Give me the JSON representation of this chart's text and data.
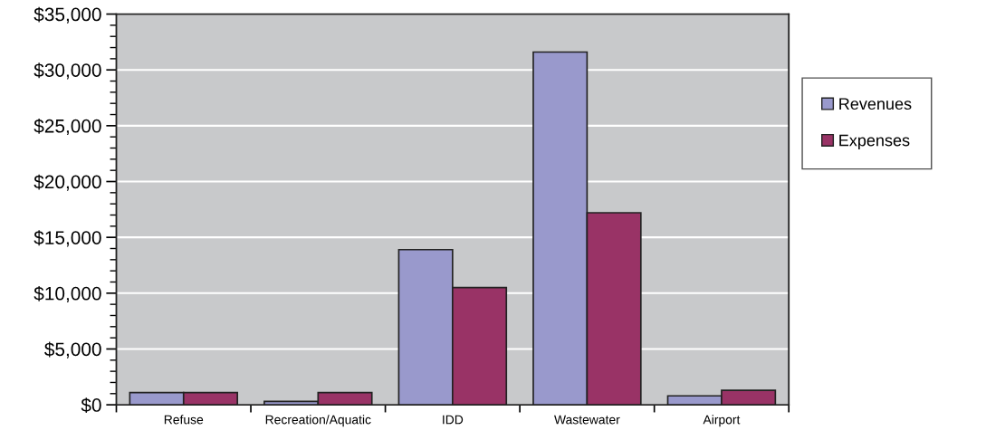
{
  "chart_data": {
    "type": "bar",
    "categories": [
      "Refuse",
      "Recreation/Aquatic",
      "IDD",
      "Wastewater",
      "Airport"
    ],
    "series": [
      {
        "name": "Revenues",
        "color": "#9999cc",
        "values": [
          1100,
          300,
          13900,
          31600,
          800
        ]
      },
      {
        "name": "Expenses",
        "color": "#993366",
        "values": [
          1100,
          1100,
          10500,
          17200,
          1300
        ]
      }
    ],
    "ylim": [
      0,
      35000
    ],
    "yticks": [
      {
        "value": 0,
        "label": "$0"
      },
      {
        "value": 5000,
        "label": "$5,000"
      },
      {
        "value": 10000,
        "label": "$10,000"
      },
      {
        "value": 15000,
        "label": "$15,000"
      },
      {
        "value": 20000,
        "label": "$20,000"
      },
      {
        "value": 25000,
        "label": "$25,000"
      },
      {
        "value": 30000,
        "label": "$30,000"
      },
      {
        "value": 35000,
        "label": "$35,000"
      }
    ],
    "grid": "y",
    "legend": "right"
  }
}
